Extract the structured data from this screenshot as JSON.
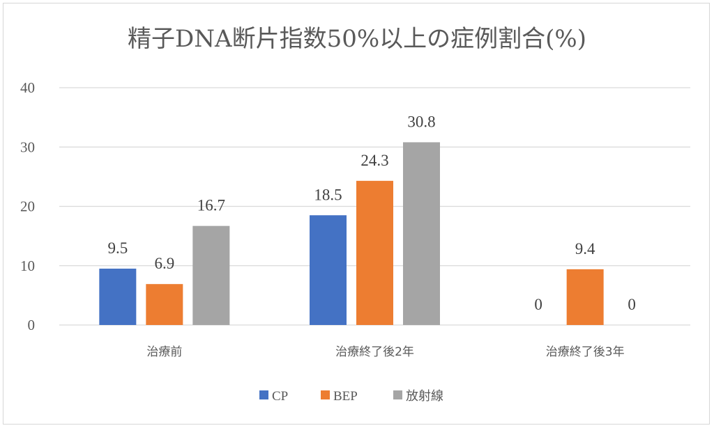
{
  "chart_data": {
    "type": "bar",
    "title": "精子DNA断片指数50%以上の症例割合(%)",
    "categories": [
      "治療前",
      "治療終了後2年",
      "治療終了後3年"
    ],
    "series": [
      {
        "name": "CP",
        "values": [
          9.5,
          18.5,
          0
        ],
        "color": "#4472c4"
      },
      {
        "name": "BEP",
        "values": [
          6.9,
          24.3,
          9.4
        ],
        "color": "#ed7d31"
      },
      {
        "name": "放射線",
        "values": [
          16.7,
          30.8,
          0
        ],
        "color": "#a5a5a5"
      }
    ],
    "ylim": [
      0,
      40
    ],
    "yticks": [
      0,
      10,
      20,
      30,
      40
    ],
    "grid": true,
    "legend": "bottom",
    "data_labels": [
      [
        "9.5",
        "18.5",
        "0"
      ],
      [
        "6.9",
        "24.3",
        "9.4"
      ],
      [
        "16.7",
        "30.8",
        "0"
      ]
    ]
  }
}
